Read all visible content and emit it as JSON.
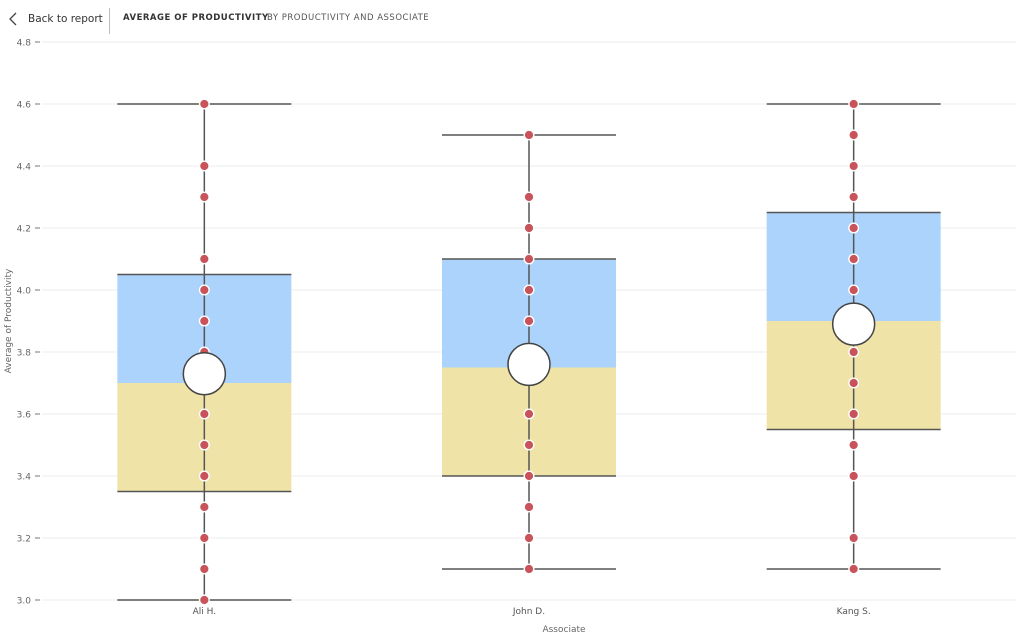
{
  "nav": {
    "back_label": "Back to report"
  },
  "header": {
    "title": "AVERAGE OF PRODUCTIVITY",
    "subtitle": "BY PRODUCTIVITY AND ASSOCIATE"
  },
  "colors": {
    "upper_box": "#abd3fb",
    "lower_box": "#efe3a8",
    "point": "#c8535b",
    "whisker": "#555555",
    "gridline": "#eeeeee"
  },
  "chart_data": {
    "type": "box",
    "xlabel": "Associate",
    "ylabel": "Average of Productivity",
    "ylim": [
      3.0,
      4.8
    ],
    "yticks": [
      "3.0",
      "3.2",
      "3.4",
      "3.6",
      "3.8",
      "4.0",
      "4.2",
      "4.4",
      "4.6",
      "4.8"
    ],
    "grid": true,
    "categories": [
      "Ali H.",
      "John D.",
      "Kang S."
    ],
    "boxes": [
      {
        "min": 3.0,
        "q1": 3.35,
        "median": 3.7,
        "q3": 4.05,
        "max": 4.6,
        "mean": 3.73,
        "points": [
          3.0,
          3.1,
          3.2,
          3.3,
          3.4,
          3.5,
          3.6,
          3.8,
          3.9,
          4.0,
          4.1,
          4.3,
          4.4,
          4.6
        ]
      },
      {
        "min": 3.1,
        "q1": 3.4,
        "median": 3.75,
        "q3": 4.1,
        "max": 4.5,
        "mean": 3.76,
        "points": [
          3.1,
          3.2,
          3.3,
          3.4,
          3.5,
          3.6,
          3.9,
          4.0,
          4.1,
          4.2,
          4.3,
          4.5
        ]
      },
      {
        "min": 3.1,
        "q1": 3.55,
        "median": 3.9,
        "q3": 4.25,
        "max": 4.6,
        "mean": 3.89,
        "points": [
          3.1,
          3.2,
          3.4,
          3.5,
          3.6,
          3.7,
          3.8,
          4.0,
          4.1,
          4.2,
          4.3,
          4.4,
          4.5,
          4.6
        ]
      }
    ]
  }
}
